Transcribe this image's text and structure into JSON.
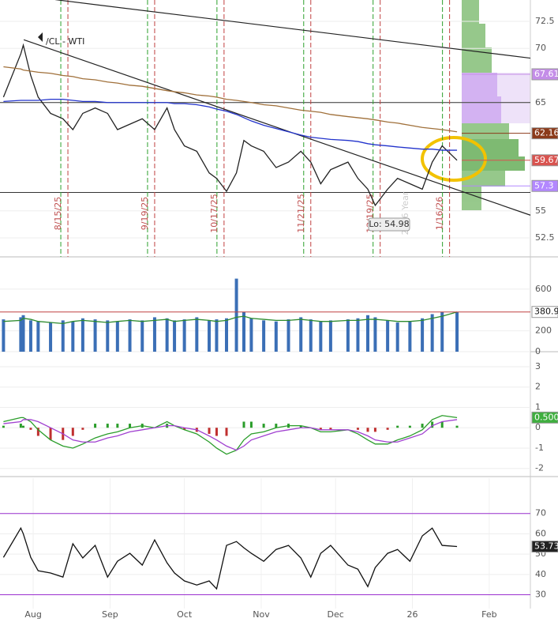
{
  "chart_data": [
    {
      "type": "line",
      "title": "/CL - WTI",
      "xlim": [
        -13.4,
        200.6
      ],
      "ylim": [
        50.75,
        74.47
      ],
      "yticks": [
        52.5,
        55,
        65,
        70,
        72.5
      ],
      "x": [
        -12,
        -5,
        -4,
        -1,
        2,
        7,
        12,
        16,
        20,
        25,
        30,
        34,
        39,
        44,
        49,
        54,
        57,
        61,
        66,
        71,
        74,
        78,
        82,
        85,
        88,
        93,
        98,
        103,
        108,
        112,
        116,
        120,
        127,
        131,
        135,
        138,
        143,
        147,
        152,
        157,
        161,
        165,
        171
      ],
      "series": [
        {
          "color": "#222222",
          "values": [
            65.5,
            69.5,
            70.3,
            67.5,
            65.5,
            64,
            63.5,
            62.5,
            64,
            64.5,
            64,
            62.5,
            63,
            63.5,
            62.5,
            64.5,
            62.5,
            61,
            60.5,
            58.5,
            58,
            56.8,
            58.5,
            61.5,
            61,
            60.5,
            59,
            59.5,
            60.5,
            59.5,
            57.5,
            58.8,
            59.5,
            58,
            57,
            55.5,
            57,
            58,
            57.5,
            57,
            59.5,
            61,
            59.67
          ]
        },
        {
          "color": "#a0703a",
          "values": [
            68.3,
            68.1,
            68.0,
            67.9,
            67.8,
            67.7,
            67.5,
            67.4,
            67.2,
            67.1,
            66.9,
            66.8,
            66.6,
            66.5,
            66.3,
            66.1,
            66.0,
            65.9,
            65.7,
            65.6,
            65.5,
            65.3,
            65.2,
            65.1,
            65.0,
            64.8,
            64.7,
            64.5,
            64.3,
            64.2,
            64.1,
            63.9,
            63.7,
            63.6,
            63.5,
            63.4,
            63.2,
            63.1,
            62.9,
            62.7,
            62.6,
            62.5,
            62.3
          ]
        },
        {
          "color": "#2233cc",
          "values": [
            65.1,
            65.2,
            65.2,
            65.2,
            65.2,
            65.3,
            65.3,
            65.2,
            65.1,
            65.1,
            65.0,
            65.0,
            65.0,
            65.0,
            65.0,
            65.0,
            64.9,
            64.9,
            64.8,
            64.6,
            64.4,
            64.2,
            63.9,
            63.6,
            63.3,
            62.9,
            62.6,
            62.3,
            62.0,
            61.8,
            61.7,
            61.6,
            61.5,
            61.4,
            61.2,
            61.1,
            61.0,
            60.9,
            60.8,
            60.7,
            60.7,
            60.6,
            60.6
          ]
        }
      ],
      "levels": [
        {
          "value": 67.61,
          "color": "#c48de8"
        },
        {
          "value": 62.16,
          "color": "#8b3a1a"
        },
        {
          "value": 59.67,
          "color": "#d9534f"
        },
        {
          "value": 57.3,
          "color": "#b388ff"
        }
      ],
      "hlines": [
        65,
        56.7
      ],
      "trendlines": [
        [
          [
            -3.8,
            70.8
          ],
          [
            200.6,
            54.6
          ]
        ],
        [
          [
            8.9,
            74.5
          ],
          [
            200.6,
            69.1
          ]
        ]
      ],
      "events": [
        {
          "x": 14,
          "label": "8/15/25"
        },
        {
          "x": 49,
          "label": "9/19/25"
        },
        {
          "x": 77,
          "label": "10/17/25"
        },
        {
          "x": 112,
          "label": "11/21/25"
        },
        {
          "x": 140,
          "label": "12/19/25"
        },
        {
          "x": 168,
          "label": "1/16/26"
        }
      ],
      "low_label": "Lo: 54.98",
      "watermark": "2026 Year"
    },
    {
      "type": "bar",
      "xlim": [
        -13.4,
        200.6
      ],
      "ylim": [
        0,
        833
      ],
      "yticks": [
        0,
        200,
        600
      ],
      "x": [
        -12,
        -5,
        -4,
        -1,
        2,
        7,
        12,
        16,
        20,
        25,
        30,
        34,
        39,
        44,
        49,
        54,
        57,
        61,
        66,
        71,
        74,
        78,
        82,
        85,
        88,
        93,
        98,
        103,
        108,
        112,
        116,
        120,
        127,
        131,
        135,
        138,
        143,
        147,
        152,
        157,
        161,
        165,
        171
      ],
      "series": [
        {
          "color": "#3b6fb6",
          "values": [
            310,
            330,
            350,
            300,
            290,
            280,
            300,
            290,
            320,
            310,
            300,
            290,
            310,
            300,
            330,
            320,
            300,
            310,
            330,
            300,
            310,
            320,
            700,
            380,
            320,
            300,
            290,
            310,
            330,
            310,
            290,
            300,
            310,
            320,
            350,
            330,
            300,
            280,
            290,
            320,
            360,
            380,
            380
          ]
        },
        {
          "color": "#2e8b2e",
          "values": [
            290,
            300,
            320,
            310,
            290,
            280,
            270,
            290,
            300,
            290,
            280,
            290,
            300,
            290,
            300,
            310,
            290,
            300,
            310,
            300,
            290,
            300,
            330,
            340,
            320,
            310,
            300,
            300,
            310,
            300,
            290,
            290,
            300,
            300,
            310,
            310,
            300,
            290,
            290,
            300,
            320,
            340,
            380.9
          ]
        }
      ]
    },
    {
      "type": "macd",
      "xlim": [
        -13.4,
        200.6
      ],
      "ylim": [
        -2.4,
        3.35
      ],
      "yticks": [
        -2,
        -1,
        0,
        1,
        2,
        3
      ],
      "x": [
        -12,
        -5,
        -4,
        -1,
        2,
        7,
        12,
        16,
        20,
        25,
        30,
        34,
        39,
        44,
        49,
        54,
        57,
        61,
        66,
        71,
        74,
        78,
        82,
        85,
        88,
        93,
        98,
        103,
        108,
        112,
        116,
        120,
        127,
        131,
        135,
        138,
        143,
        147,
        152,
        157,
        161,
        165,
        171
      ],
      "series": [
        {
          "color": "#2a9d2a",
          "values": [
            0.3,
            0.5,
            0.5,
            0.3,
            -0.1,
            -0.6,
            -0.9,
            -1.0,
            -0.8,
            -0.5,
            -0.3,
            -0.2,
            0.0,
            0.1,
            0.0,
            0.3,
            0.1,
            -0.1,
            -0.3,
            -0.7,
            -1.0,
            -1.3,
            -1.1,
            -0.6,
            -0.3,
            -0.2,
            0.0,
            0.1,
            0.1,
            0.0,
            -0.2,
            -0.2,
            -0.1,
            -0.3,
            -0.6,
            -0.8,
            -0.8,
            -0.6,
            -0.4,
            -0.1,
            0.4,
            0.6,
            0.5
          ]
        },
        {
          "color": "#a040d0",
          "values": [
            0.2,
            0.3,
            0.4,
            0.4,
            0.3,
            0.0,
            -0.3,
            -0.6,
            -0.7,
            -0.7,
            -0.5,
            -0.4,
            -0.2,
            -0.1,
            0.0,
            0.1,
            0.1,
            0.0,
            -0.1,
            -0.4,
            -0.6,
            -0.9,
            -1.1,
            -0.9,
            -0.6,
            -0.4,
            -0.2,
            -0.1,
            0.0,
            0.0,
            -0.1,
            -0.1,
            -0.1,
            -0.2,
            -0.4,
            -0.6,
            -0.7,
            -0.7,
            -0.5,
            -0.3,
            0.1,
            0.3,
            0.4
          ]
        }
      ],
      "histogram": {
        "pos_color": "#2a9d2a",
        "neg_color": "#c03030",
        "values": [
          0.1,
          0.2,
          0.1,
          -0.1,
          -0.4,
          -0.6,
          -0.6,
          -0.4,
          -0.1,
          0.2,
          0.2,
          0.2,
          0.2,
          0.2,
          0.0,
          0.2,
          0.0,
          -0.1,
          -0.2,
          -0.3,
          -0.4,
          -0.4,
          0.0,
          0.3,
          0.3,
          0.2,
          0.2,
          0.2,
          0.1,
          0.0,
          -0.1,
          -0.1,
          0.0,
          -0.1,
          -0.2,
          -0.2,
          -0.1,
          0.1,
          0.1,
          0.2,
          0.3,
          0.3,
          0.1
        ]
      },
      "current": {
        "value": 0.5,
        "label": "0.500"
      }
    },
    {
      "type": "line",
      "xlim": [
        -13.4,
        200.6
      ],
      "ylim": [
        23.2,
        87.4
      ],
      "yticks": [
        30,
        40,
        50,
        60,
        70
      ],
      "bands": [
        30,
        70
      ],
      "xticks": [
        {
          "value": 0,
          "label": "Aug"
        },
        {
          "value": 31,
          "label": "Sep"
        },
        {
          "value": 61,
          "label": "Oct"
        },
        {
          "value": 92,
          "label": "Nov"
        },
        {
          "value": 122,
          "label": "Dec"
        },
        {
          "value": 153,
          "label": "26"
        },
        {
          "value": 184,
          "label": "Feb"
        }
      ],
      "x": [
        -12,
        -5,
        -4,
        -1,
        2,
        7,
        12,
        16,
        20,
        25,
        30,
        34,
        39,
        44,
        49,
        54,
        57,
        61,
        66,
        71,
        74,
        78,
        82,
        85,
        88,
        93,
        98,
        103,
        108,
        112,
        116,
        120,
        127,
        131,
        135,
        138,
        143,
        147,
        152,
        157,
        161,
        165,
        171
      ],
      "series": [
        {
          "color": "#111111",
          "values": [
            48.4,
            62.8,
            60.0,
            48.4,
            41.8,
            40.7,
            38.7,
            55.1,
            48.1,
            54.3,
            38.7,
            46.5,
            50.4,
            44.6,
            57.0,
            45.7,
            40.7,
            36.8,
            34.8,
            36.8,
            32.9,
            54.3,
            56.2,
            53.1,
            50.4,
            46.5,
            52.3,
            54.3,
            48.1,
            38.7,
            50.4,
            54.3,
            44.6,
            42.6,
            34.0,
            43.4,
            50.4,
            52.3,
            46.5,
            59.0,
            62.8,
            54.3,
            53.73
          ]
        }
      ]
    }
  ]
}
